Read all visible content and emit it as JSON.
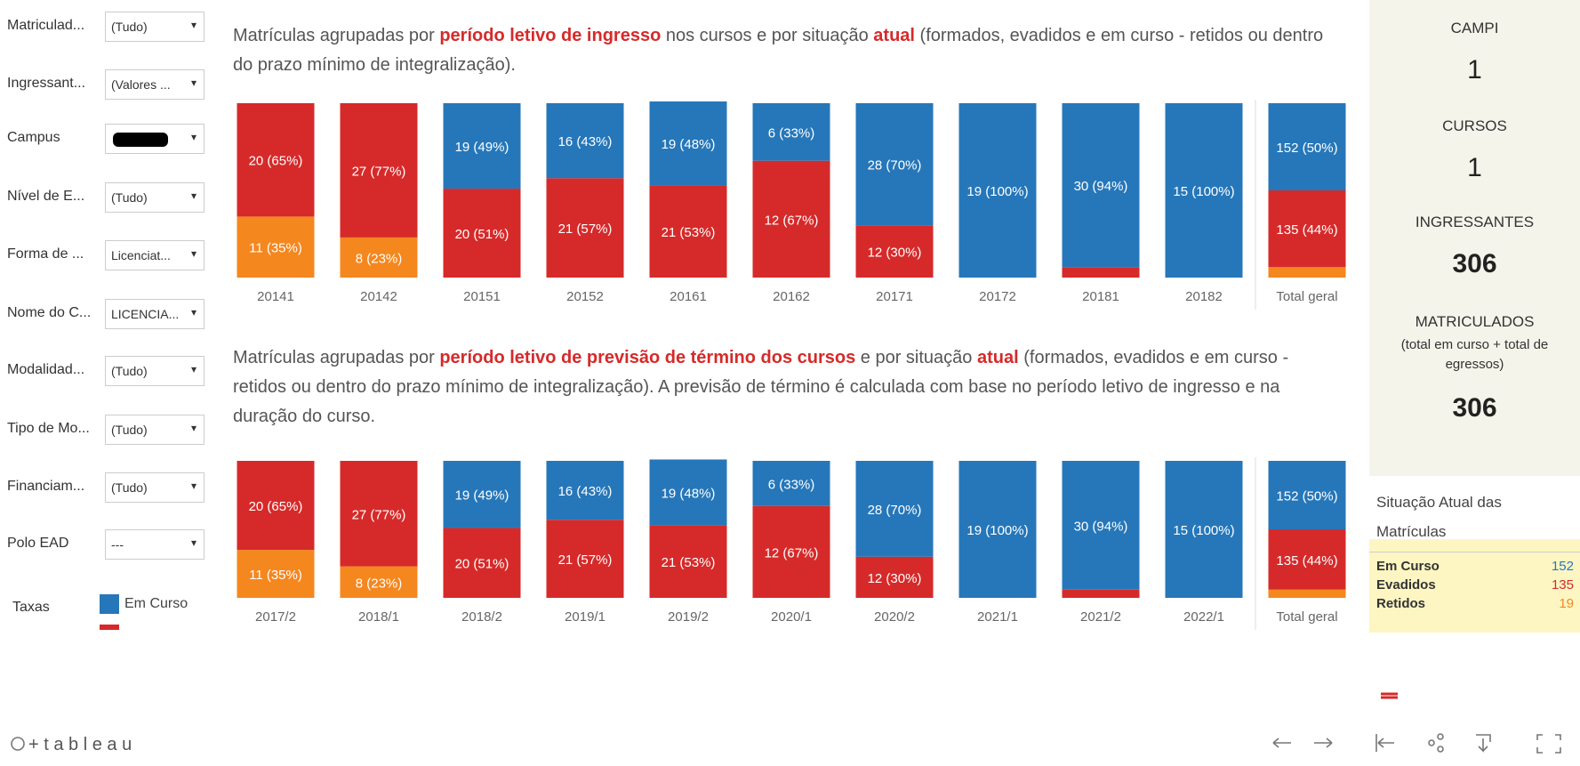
{
  "filters": [
    {
      "label": "Matriculad...",
      "value": "(Tudo)"
    },
    {
      "label": "Ingressant...",
      "value": "(Valores ..."
    },
    {
      "label": "Campus"
    },
    {
      "label": "Nível de E...",
      "value": "(Tudo)"
    },
    {
      "label": "Forma de ...",
      "value": "Licenciat..."
    },
    {
      "label": "Nome do C...",
      "value": "LICENCIA..."
    },
    {
      "label": "Modalidad...",
      "value": "(Tudo)"
    },
    {
      "label": "Tipo de Mo...",
      "value": "(Tudo)"
    },
    {
      "label": "Financiam...",
      "value": "(Tudo)"
    },
    {
      "label": "Polo EAD",
      "value": "---"
    }
  ],
  "legend": {
    "title": "Taxas"
  },
  "chart_data": [
    {
      "type": "bar",
      "stacked": true,
      "title_parts": [
        {
          "text": "Matrículas agrupadas por "
        },
        {
          "text": "período letivo de ingresso",
          "highlight": true
        },
        {
          "text": " nos cursos e por situação "
        },
        {
          "text": "atual",
          "highlight": true
        },
        {
          "text": " (formados, evadidos e em curso - retidos ou dentro do prazo mínimo de integralização)."
        }
      ],
      "categories": [
        "20141",
        "20142",
        "20151",
        "20152",
        "20161",
        "20162",
        "20171",
        "20172",
        "20181",
        "20182",
        "Total geral"
      ],
      "ylim": [
        0,
        100
      ],
      "series": [
        {
          "name": "Retidos",
          "color": "#f5871f",
          "values": [
            35,
            23,
            null,
            null,
            null,
            null,
            null,
            null,
            null,
            null,
            6
          ],
          "value_labels": [
            "11 (35%)",
            "8 (23%)",
            null,
            null,
            null,
            null,
            null,
            null,
            null,
            null,
            null
          ]
        },
        {
          "name": "Evadidos",
          "color": "#d62a2a",
          "values": [
            65,
            77,
            51,
            57,
            53,
            67,
            30,
            null,
            6,
            null,
            44
          ],
          "value_labels": [
            "20 (65%)",
            "27 (77%)",
            "20 (51%)",
            "21 (57%)",
            "21 (53%)",
            "12 (67%)",
            "12 (30%)",
            null,
            null,
            null,
            "135 (44%)"
          ]
        },
        {
          "name": "Em Curso",
          "color": "#2677b9",
          "values": [
            null,
            null,
            49,
            43,
            48,
            33,
            70,
            100,
            94,
            100,
            50
          ],
          "value_labels": [
            null,
            null,
            "19 (49%)",
            "16 (43%)",
            "19 (48%)",
            "6 (33%)",
            "28 (70%)",
            "19 (100%)",
            "30 (94%)",
            "15 (100%)",
            "152 (50%)"
          ]
        }
      ]
    },
    {
      "type": "bar",
      "stacked": true,
      "title_parts": [
        {
          "text": "Matrículas agrupadas por "
        },
        {
          "text": "período letivo de previsão de término dos cursos",
          "highlight": true
        },
        {
          "text": " e por situação "
        },
        {
          "text": "atual",
          "highlight": true
        },
        {
          "text": " (formados, evadidos e em curso - retidos ou dentro do prazo mínimo de integralização). A previsão de término é calculada com base no período letivo de ingresso e na duração do curso."
        }
      ],
      "categories": [
        "2017/2",
        "2018/1",
        "2018/2",
        "2019/1",
        "2019/2",
        "2020/1",
        "2020/2",
        "2021/1",
        "2021/2",
        "2022/1",
        "Total geral"
      ],
      "ylim": [
        0,
        100
      ],
      "series": [
        {
          "name": "Retidos",
          "color": "#f5871f",
          "values": [
            35,
            23,
            null,
            null,
            null,
            null,
            null,
            null,
            null,
            null,
            6
          ],
          "value_labels": [
            "11 (35%)",
            "8 (23%)",
            null,
            null,
            null,
            null,
            null,
            null,
            null,
            null,
            null
          ]
        },
        {
          "name": "Evadidos",
          "color": "#d62a2a",
          "values": [
            65,
            77,
            51,
            57,
            53,
            67,
            30,
            null,
            6,
            null,
            44
          ],
          "value_labels": [
            "20 (65%)",
            "27 (77%)",
            "20 (51%)",
            "21 (57%)",
            "21 (53%)",
            "12 (67%)",
            "12 (30%)",
            null,
            null,
            null,
            "135 (44%)"
          ]
        },
        {
          "name": "Em Curso",
          "color": "#2677b9",
          "values": [
            null,
            null,
            49,
            43,
            48,
            33,
            70,
            100,
            94,
            100,
            50
          ],
          "value_labels": [
            null,
            null,
            "19 (49%)",
            "16 (43%)",
            "19 (48%)",
            "6 (33%)",
            "28 (70%)",
            "19 (100%)",
            "30 (94%)",
            "15 (100%)",
            "152 (50%)"
          ]
        }
      ]
    }
  ],
  "kpis": [
    {
      "label": "CAMPI",
      "value": 1
    },
    {
      "label": "CURSOS",
      "value": 1
    },
    {
      "label": "INGRESSANTES",
      "value": 306
    },
    {
      "label": "MATRICULADOS",
      "sublabel": "(total em curso + total de egressos)",
      "value": 306
    }
  ],
  "situacao": {
    "title": "Situação Atual das Matrículas",
    "rows": [
      {
        "label": "Em Curso",
        "value": 152,
        "color": "#2677b9"
      },
      {
        "label": "Evadidos",
        "value": 135,
        "color": "#d62a2a"
      },
      {
        "label": "Retidos",
        "value": 19,
        "color": "#f5871f"
      }
    ]
  },
  "footer": {
    "brand": "+ t a b l e a u"
  }
}
